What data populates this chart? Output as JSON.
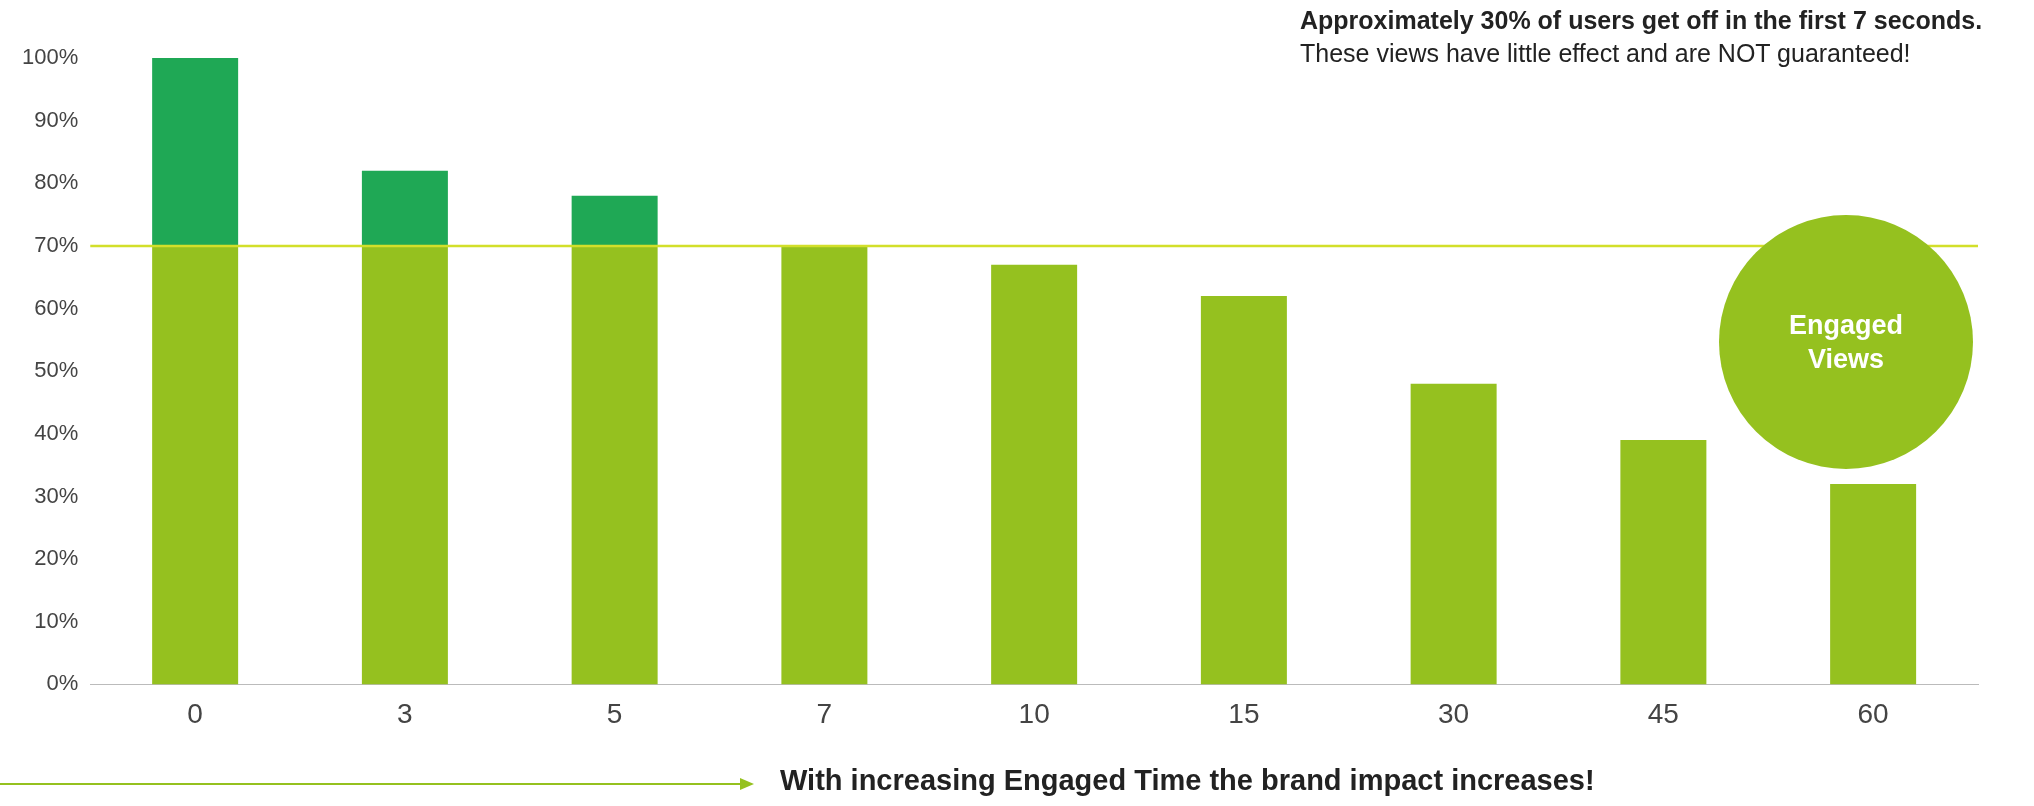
{
  "chart_data": {
    "type": "bar",
    "stacked": true,
    "categories": [
      "0",
      "3",
      "5",
      "7",
      "10",
      "15",
      "30",
      "45",
      "60"
    ],
    "series": [
      {
        "color": "#95c11f",
        "values": [
          70,
          70,
          70,
          70,
          67,
          62,
          48,
          39,
          32
        ]
      },
      {
        "color": "#1fa855",
        "values": [
          30,
          12,
          8,
          0,
          0,
          0,
          0,
          0,
          0
        ]
      }
    ],
    "ylim": [
      0,
      100
    ],
    "yticks": [
      {
        "value": 0,
        "label": "0%"
      },
      {
        "value": 10,
        "label": "10%"
      },
      {
        "value": 20,
        "label": "20%"
      },
      {
        "value": 30,
        "label": "30%"
      },
      {
        "value": 40,
        "label": "40%"
      },
      {
        "value": 50,
        "label": "50%"
      },
      {
        "value": 60,
        "label": "60%"
      },
      {
        "value": 70,
        "label": "70%"
      },
      {
        "value": 80,
        "label": "80%"
      },
      {
        "value": 90,
        "label": "90%"
      },
      {
        "value": 100,
        "label": "100%"
      }
    ],
    "ref_lines": [
      {
        "axis": "y",
        "value": 70,
        "color": "#d2df2a"
      }
    ],
    "grid": false,
    "legend": false,
    "annotations": [
      "Approximately 30% of users get off in the first 7 seconds.",
      "These views have little effect and are NOT guaranteed!",
      "With increasing Engaged Time the brand impact increases!",
      "Engaged Views"
    ]
  }
}
